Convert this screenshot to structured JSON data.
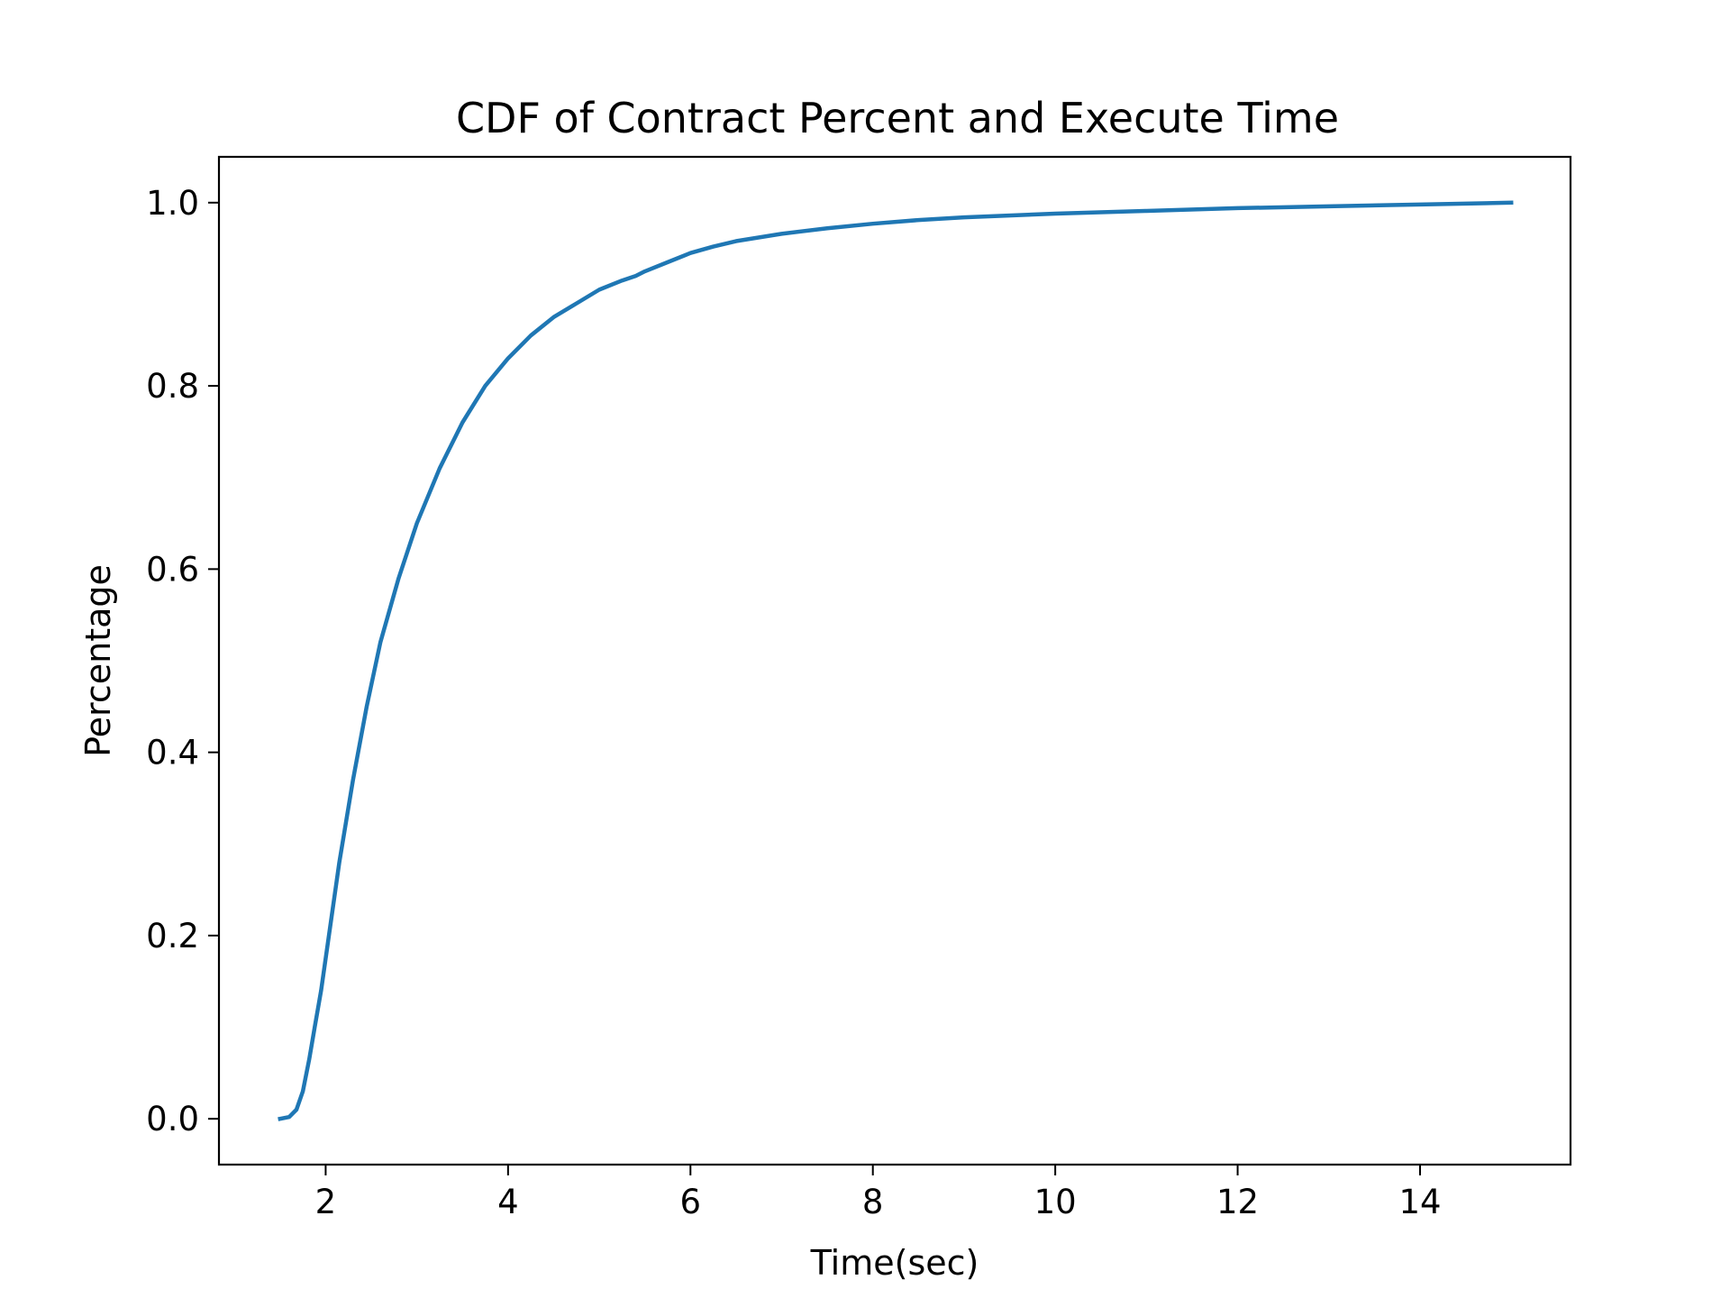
{
  "chart_data": {
    "type": "line",
    "title": "CDF of Contract Percent and Execute Time",
    "xlabel": "Time(sec)",
    "ylabel": "Percentage",
    "xlim": [
      0.83,
      15.65
    ],
    "ylim": [
      -0.05,
      1.05
    ],
    "xticks": [
      2,
      4,
      6,
      8,
      10,
      12,
      14
    ],
    "xtick_labels": [
      "2",
      "4",
      "6",
      "8",
      "10",
      "12",
      "14"
    ],
    "yticks": [
      0.0,
      0.2,
      0.4,
      0.6,
      0.8,
      1.0
    ],
    "ytick_labels": [
      "0.0",
      "0.2",
      "0.4",
      "0.6",
      "0.8",
      "1.0"
    ],
    "grid": false,
    "legend": false,
    "series": [
      {
        "color": "#1f77b4",
        "x": [
          1.5,
          1.6,
          1.68,
          1.75,
          1.82,
          1.88,
          1.95,
          2.05,
          2.15,
          2.3,
          2.45,
          2.6,
          2.8,
          3.0,
          3.25,
          3.5,
          3.75,
          4.0,
          4.25,
          4.5,
          4.75,
          5.0,
          5.25,
          5.4,
          5.5,
          5.75,
          6.0,
          6.25,
          6.5,
          7.0,
          7.5,
          8.0,
          8.5,
          9.0,
          10.0,
          11.0,
          12.0,
          13.0,
          14.0,
          15.0
        ],
        "y": [
          0.0,
          0.002,
          0.01,
          0.03,
          0.065,
          0.1,
          0.14,
          0.21,
          0.28,
          0.37,
          0.45,
          0.52,
          0.59,
          0.65,
          0.71,
          0.76,
          0.8,
          0.83,
          0.855,
          0.875,
          0.89,
          0.905,
          0.915,
          0.92,
          0.925,
          0.935,
          0.945,
          0.952,
          0.958,
          0.966,
          0.972,
          0.977,
          0.981,
          0.984,
          0.988,
          0.991,
          0.994,
          0.996,
          0.998,
          1.0
        ]
      }
    ]
  }
}
